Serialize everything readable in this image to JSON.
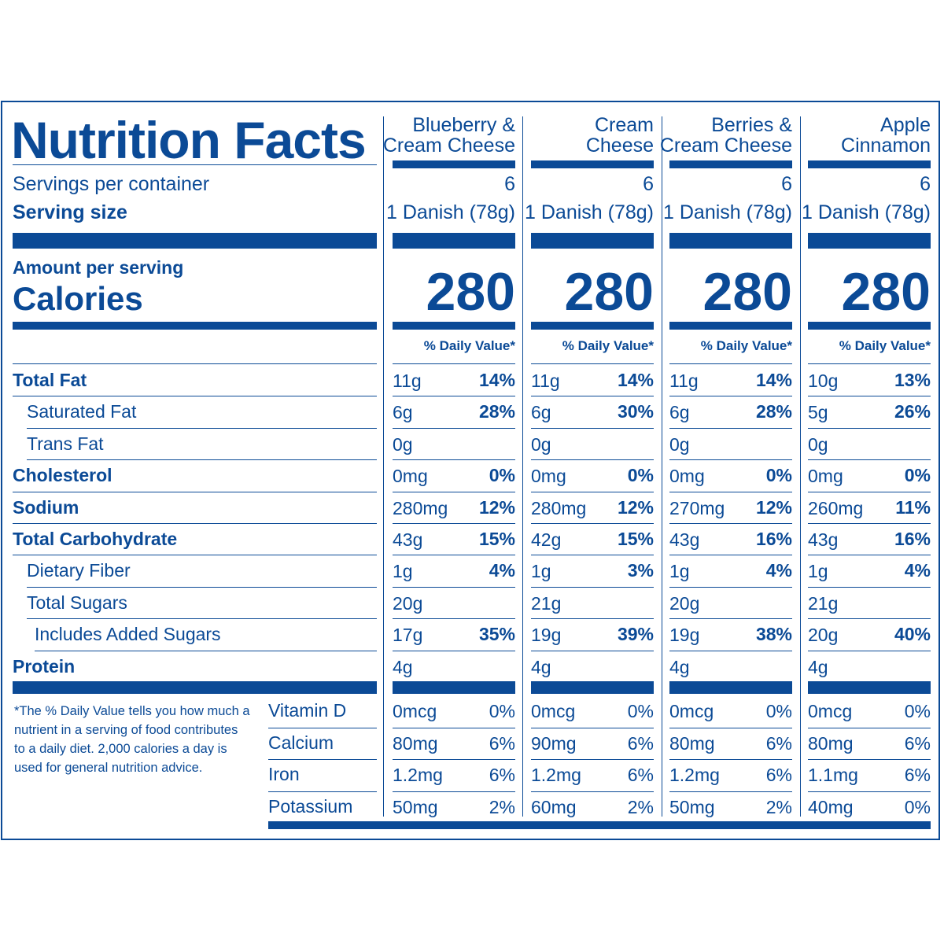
{
  "title": "Nutrition Facts",
  "labels": {
    "servings_per_container": "Servings per container",
    "serving_size": "Serving size",
    "amount_per_serving": "Amount per serving",
    "calories": "Calories",
    "daily_value_header": "% Daily Value*"
  },
  "products": [
    {
      "name_line1": "Blueberry &",
      "name_line2": "Cream Cheese",
      "servings": "6",
      "serving_size": "1 Danish (78g)",
      "calories": "280"
    },
    {
      "name_line1": "Cream",
      "name_line2": "Cheese",
      "servings": "6",
      "serving_size": "1 Danish (78g)",
      "calories": "280"
    },
    {
      "name_line1": "Berries &",
      "name_line2": "Cream Cheese",
      "servings": "6",
      "serving_size": "1 Danish (78g)",
      "calories": "280"
    },
    {
      "name_line1": "Apple",
      "name_line2": "Cinnamon",
      "servings": "6",
      "serving_size": "1 Danish (78g)",
      "calories": "280"
    }
  ],
  "nutrients": [
    {
      "label": "Total Fat",
      "bold": true,
      "indent": 0,
      "values": [
        [
          "11g",
          "14%"
        ],
        [
          "11g",
          "14%"
        ],
        [
          "11g",
          "14%"
        ],
        [
          "10g",
          "13%"
        ]
      ]
    },
    {
      "label": "Saturated Fat",
      "bold": false,
      "indent": 1,
      "values": [
        [
          "6g",
          "28%"
        ],
        [
          "6g",
          "30%"
        ],
        [
          "6g",
          "28%"
        ],
        [
          "5g",
          "26%"
        ]
      ]
    },
    {
      "label": "Trans Fat",
      "bold": false,
      "indent": 1,
      "values": [
        [
          "0g",
          ""
        ],
        [
          "0g",
          ""
        ],
        [
          "0g",
          ""
        ],
        [
          "0g",
          ""
        ]
      ]
    },
    {
      "label": "Cholesterol",
      "bold": true,
      "indent": 0,
      "values": [
        [
          "0mg",
          "0%"
        ],
        [
          "0mg",
          "0%"
        ],
        [
          "0mg",
          "0%"
        ],
        [
          "0mg",
          "0%"
        ]
      ]
    },
    {
      "label": "Sodium",
      "bold": true,
      "indent": 0,
      "values": [
        [
          "280mg",
          "12%"
        ],
        [
          "280mg",
          "12%"
        ],
        [
          "270mg",
          "12%"
        ],
        [
          "260mg",
          "11%"
        ]
      ]
    },
    {
      "label": "Total Carbohydrate",
      "bold": true,
      "indent": 0,
      "values": [
        [
          "43g",
          "15%"
        ],
        [
          "42g",
          "15%"
        ],
        [
          "43g",
          "16%"
        ],
        [
          "43g",
          "16%"
        ]
      ]
    },
    {
      "label": "Dietary Fiber",
      "bold": false,
      "indent": 1,
      "values": [
        [
          "1g",
          "4%"
        ],
        [
          "1g",
          "3%"
        ],
        [
          "1g",
          "4%"
        ],
        [
          "1g",
          "4%"
        ]
      ]
    },
    {
      "label": "Total Sugars",
      "bold": false,
      "indent": 1,
      "values": [
        [
          "20g",
          ""
        ],
        [
          "21g",
          ""
        ],
        [
          "20g",
          ""
        ],
        [
          "21g",
          ""
        ]
      ]
    },
    {
      "label": "Includes Added Sugars",
      "bold": false,
      "indent": 2,
      "values": [
        [
          "17g",
          "35%"
        ],
        [
          "19g",
          "39%"
        ],
        [
          "19g",
          "38%"
        ],
        [
          "20g",
          "40%"
        ]
      ]
    },
    {
      "label": "Protein",
      "bold": true,
      "indent": 0,
      "values": [
        [
          "4g",
          ""
        ],
        [
          "4g",
          ""
        ],
        [
          "4g",
          ""
        ],
        [
          "4g",
          ""
        ]
      ]
    }
  ],
  "vitamins": [
    {
      "label": "Vitamin D",
      "values": [
        [
          "0mcg",
          "0%"
        ],
        [
          "0mcg",
          "0%"
        ],
        [
          "0mcg",
          "0%"
        ],
        [
          "0mcg",
          "0%"
        ]
      ]
    },
    {
      "label": "Calcium",
      "values": [
        [
          "80mg",
          "6%"
        ],
        [
          "90mg",
          "6%"
        ],
        [
          "80mg",
          "6%"
        ],
        [
          "80mg",
          "6%"
        ]
      ]
    },
    {
      "label": "Iron",
      "values": [
        [
          "1.2mg",
          "6%"
        ],
        [
          "1.2mg",
          "6%"
        ],
        [
          "1.2mg",
          "6%"
        ],
        [
          "1.1mg",
          "6%"
        ]
      ]
    },
    {
      "label": "Potassium",
      "values": [
        [
          "50mg",
          "2%"
        ],
        [
          "60mg",
          "2%"
        ],
        [
          "50mg",
          "2%"
        ],
        [
          "40mg",
          "0%"
        ]
      ]
    }
  ],
  "footnote": "*The % Daily Value tells you how much a nutrient in a serving of food contributes to a daily diet. 2,000 calories a day is used for general nutrition advice."
}
